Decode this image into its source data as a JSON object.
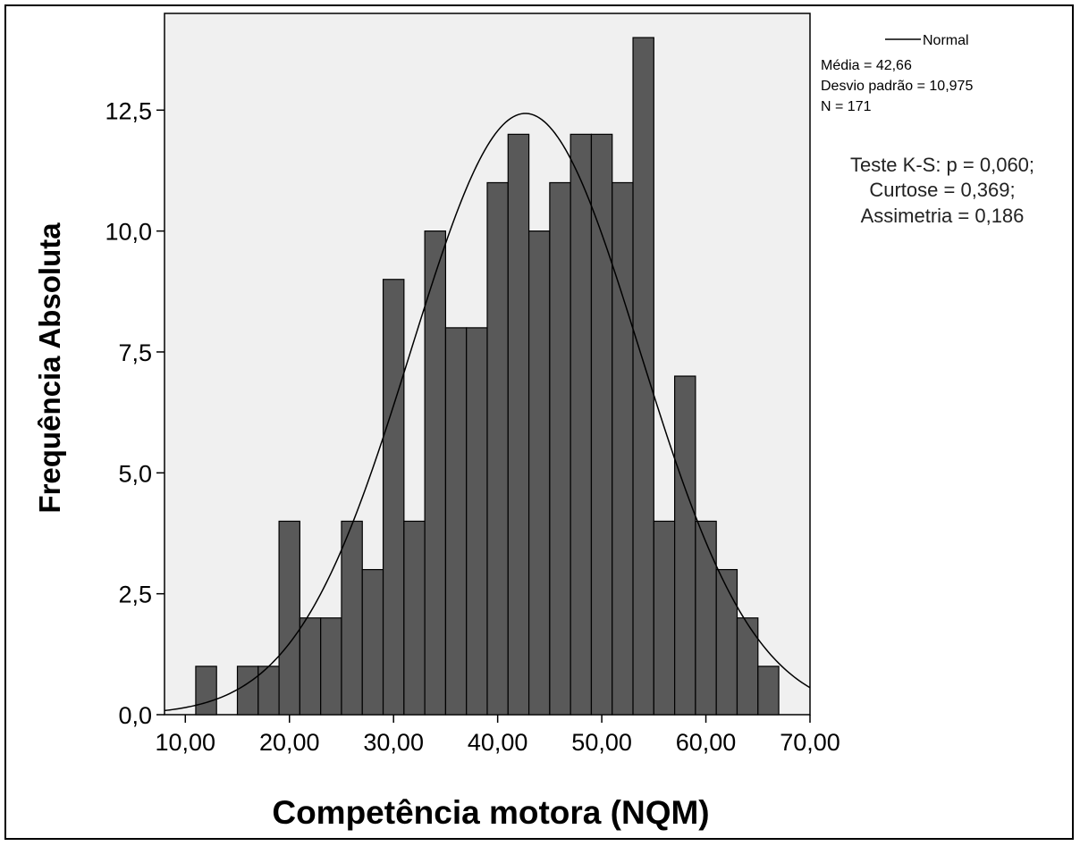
{
  "chart_data": {
    "type": "bar",
    "subtype": "histogram-with-normal-curve",
    "xlabel": "Competência motora (NQM)",
    "ylabel": "Frequência Absoluta",
    "xlim": [
      8,
      70
    ],
    "ylim": [
      0,
      14.5
    ],
    "x_ticks": [
      "10,00",
      "20,00",
      "30,00",
      "40,00",
      "50,00",
      "60,00",
      "70,00"
    ],
    "x_tick_values": [
      10,
      20,
      30,
      40,
      50,
      60,
      70
    ],
    "y_ticks": [
      "0,0",
      "2,5",
      "5,0",
      "7,5",
      "10,0",
      "12,5"
    ],
    "y_tick_values": [
      0,
      2.5,
      5,
      7.5,
      10,
      12.5
    ],
    "bin_width": 2,
    "bins": [
      {
        "x0": 11,
        "count": 1
      },
      {
        "x0": 15,
        "count": 1
      },
      {
        "x0": 17,
        "count": 1
      },
      {
        "x0": 19,
        "count": 4
      },
      {
        "x0": 21,
        "count": 2
      },
      {
        "x0": 23,
        "count": 2
      },
      {
        "x0": 25,
        "count": 4
      },
      {
        "x0": 27,
        "count": 3
      },
      {
        "x0": 29,
        "count": 9
      },
      {
        "x0": 31,
        "count": 4
      },
      {
        "x0": 33,
        "count": 10
      },
      {
        "x0": 35,
        "count": 8
      },
      {
        "x0": 37,
        "count": 8
      },
      {
        "x0": 39,
        "count": 11
      },
      {
        "x0": 41,
        "count": 12
      },
      {
        "x0": 43,
        "count": 10
      },
      {
        "x0": 45,
        "count": 11
      },
      {
        "x0": 47,
        "count": 12
      },
      {
        "x0": 49,
        "count": 12
      },
      {
        "x0": 51,
        "count": 11
      },
      {
        "x0": 53,
        "count": 14
      },
      {
        "x0": 55,
        "count": 4
      },
      {
        "x0": 57,
        "count": 7
      },
      {
        "x0": 59,
        "count": 4
      },
      {
        "x0": 61,
        "count": 3
      },
      {
        "x0": 63,
        "count": 2
      },
      {
        "x0": 65,
        "count": 1
      }
    ],
    "normal_curve": {
      "mean": 42.66,
      "sd": 10.975,
      "n": 171,
      "label": "Normal"
    },
    "legend": {
      "line_label": "Normal",
      "mean_text": "Média = 42,66",
      "sd_text": "Desvio padrão = 10,975",
      "n_text": "N = 171"
    },
    "stats_annotation": [
      "Teste K-S: p = 0,060;",
      "Curtose = 0,369;",
      "Assimetria = 0,186"
    ],
    "colors": {
      "bar": "#595959",
      "plot_bg": "#f0f0f0",
      "curve": "#000000"
    }
  }
}
